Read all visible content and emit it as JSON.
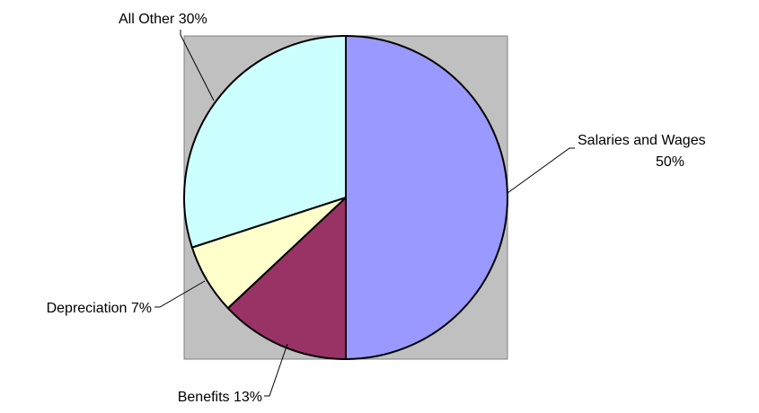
{
  "chart_data": {
    "type": "pie",
    "slices": [
      {
        "label": "Salaries and Wages",
        "value": 50,
        "display": "50%",
        "color": "#9999ff"
      },
      {
        "label": "Benefits",
        "value": 13,
        "display": "13%",
        "color": "#993366"
      },
      {
        "label": "Depreciation",
        "value": 7,
        "display": "7%",
        "color": "#ffffcc"
      },
      {
        "label": "All Other",
        "value": 30,
        "display": "30%",
        "color": "#ccffff"
      }
    ],
    "start_angle_deg": 0,
    "direction": "clockwise",
    "plot_area_color": "#c0c0c0",
    "legend": "none"
  },
  "labels": {
    "salaries_name": "Salaries and Wages",
    "salaries_pct": "50%",
    "benefits": "Benefits 13%",
    "depreciation": "Depreciation 7%",
    "all_other": "All Other 30%"
  }
}
